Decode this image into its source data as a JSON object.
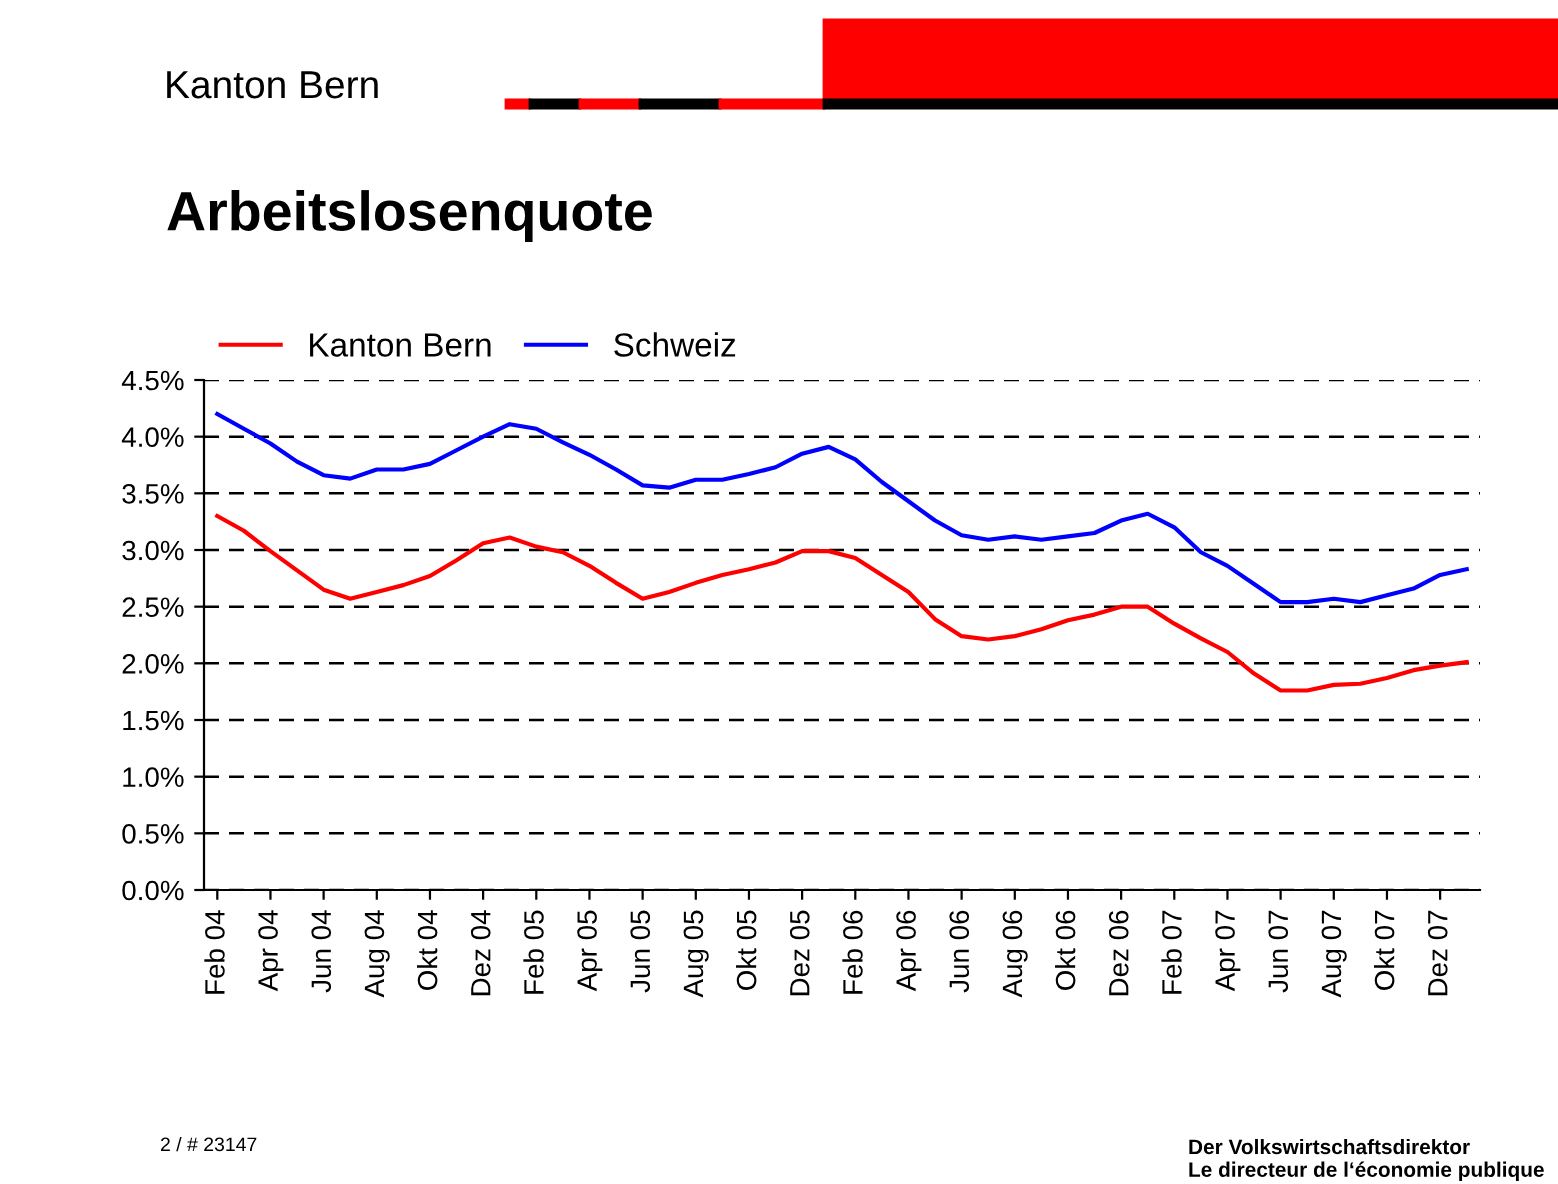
{
  "chart_data": {
    "type": "line",
    "title": "Arbeitslosenquote",
    "annotations": [
      "Kanton Bern",
      "2 / # 23147",
      "Der Volkswirtschaftsdirektor\nLe directeur de l‘économie publique"
    ],
    "categories": [
      "Feb 04",
      null,
      "Apr 04",
      null,
      "Jun 04",
      null,
      "Aug 04",
      null,
      "Okt 04",
      null,
      "Dez 04",
      null,
      "Feb 05",
      null,
      "Apr 05",
      null,
      "Jun 05",
      null,
      "Aug 05",
      null,
      "Okt 05",
      null,
      "Dez 05",
      null,
      "Feb 06",
      null,
      "Apr 06",
      null,
      "Jun 06",
      null,
      "Aug 06",
      null,
      "Okt 06",
      null,
      "Dez 06",
      null,
      "Feb 07",
      null,
      "Apr 07",
      null,
      "Jun 07",
      null,
      "Aug 07",
      null,
      "Okt 07",
      null,
      "Dez 07",
      null
    ],
    "series": [
      {
        "name": "Kanton Bern",
        "color": "#ff0000",
        "values": [
          3.3,
          3.17,
          2.99,
          2.82,
          2.65,
          2.57,
          2.63,
          2.69,
          2.77,
          2.91,
          3.06,
          3.11,
          3.03,
          2.98,
          2.86,
          2.71,
          2.57,
          2.63,
          2.71,
          2.78,
          2.83,
          2.89,
          2.99,
          2.99,
          2.93,
          2.78,
          2.63,
          2.39,
          2.24,
          2.21,
          2.24,
          2.3,
          2.38,
          2.43,
          2.5,
          2.5,
          2.35,
          2.22,
          2.1,
          1.91,
          1.76,
          1.76,
          1.81,
          1.82,
          1.87,
          1.94,
          1.98,
          2.01
        ]
      },
      {
        "name": "Schweiz",
        "color": "#0000ff",
        "values": [
          4.2,
          4.07,
          3.94,
          3.78,
          3.66,
          3.63,
          3.71,
          3.71,
          3.76,
          3.88,
          4.0,
          4.11,
          4.07,
          3.95,
          3.84,
          3.71,
          3.57,
          3.55,
          3.62,
          3.62,
          3.67,
          3.73,
          3.85,
          3.91,
          3.8,
          3.6,
          3.43,
          3.26,
          3.13,
          3.09,
          3.12,
          3.09,
          3.12,
          3.15,
          3.26,
          3.32,
          3.2,
          2.98,
          2.86,
          2.7,
          2.54,
          2.54,
          2.57,
          2.54,
          2.6,
          2.66,
          2.78,
          2.83
        ]
      }
    ],
    "ylim": [
      0,
      4.5
    ],
    "yticks": [
      {
        "value": 0,
        "label": "0.0%"
      },
      {
        "value": 0.5,
        "label": "0.5%"
      },
      {
        "value": 1,
        "label": "1.0%"
      },
      {
        "value": 1.5,
        "label": "1.5%"
      },
      {
        "value": 2,
        "label": "2.0%"
      },
      {
        "value": 2.5,
        "label": "2.5%"
      },
      {
        "value": 3,
        "label": "3.0%"
      },
      {
        "value": 3.5,
        "label": "3.5%"
      },
      {
        "value": 4,
        "label": "4.0%"
      },
      {
        "value": 4.5,
        "label": "4.5%"
      }
    ],
    "grid": "y",
    "legend": "top left",
    "marker": "none",
    "line_style": "solid"
  }
}
